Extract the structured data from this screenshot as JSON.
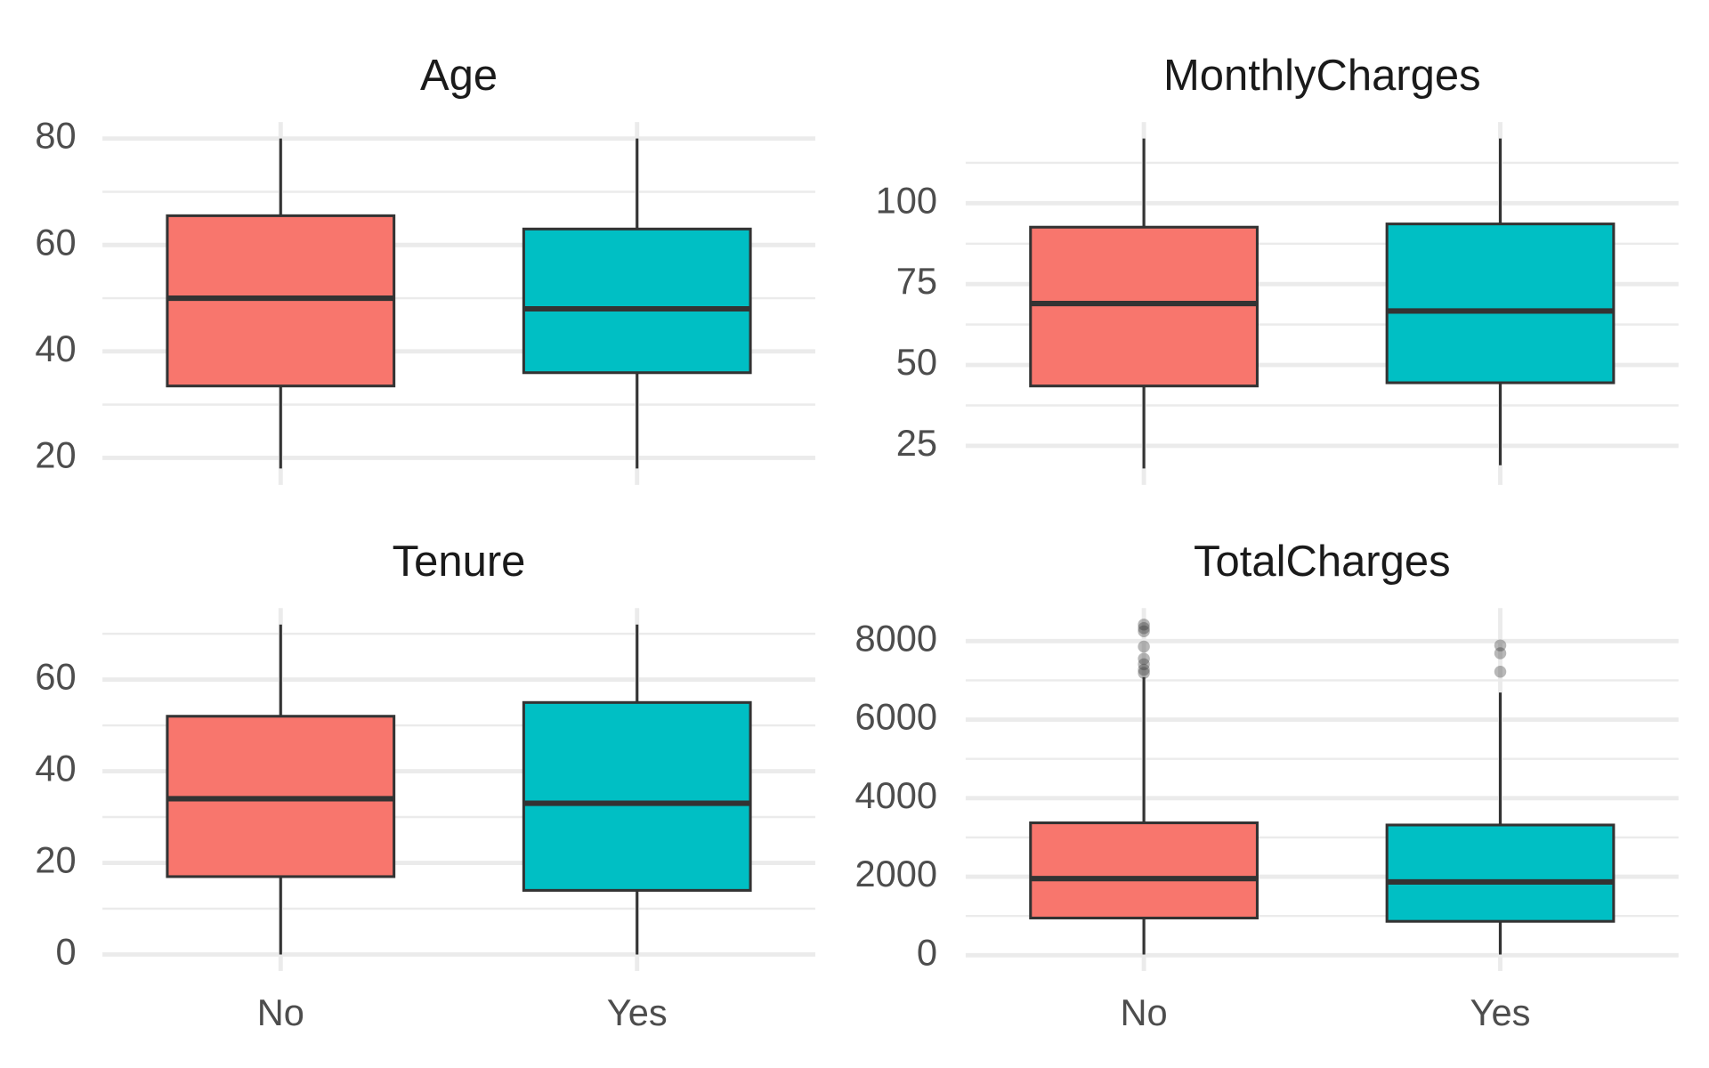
{
  "chart_data": [
    {
      "type": "box",
      "title": "Age",
      "categories": [
        null,
        null
      ],
      "colors": [
        "#F8766D",
        "#00BFC4"
      ],
      "boxes": [
        {
          "whisker_low": 18,
          "q1": 33.5,
          "median": 50,
          "q3": 65.5,
          "whisker_high": 80,
          "outliers": []
        },
        {
          "whisker_low": 18,
          "q1": 36,
          "median": 48,
          "q3": 63,
          "whisker_high": 80,
          "outliers": []
        }
      ],
      "ylim": [
        14.9,
        83.1
      ],
      "yticks": [
        20,
        40,
        60,
        80
      ],
      "grid": true
    },
    {
      "type": "box",
      "title": "MonthlyCharges",
      "categories": [
        null,
        null
      ],
      "colors": [
        "#F8766D",
        "#00BFC4"
      ],
      "boxes": [
        {
          "whisker_low": 18,
          "q1": 43.5,
          "median": 69,
          "q3": 92.6,
          "whisker_high": 120,
          "outliers": []
        },
        {
          "whisker_low": 19,
          "q1": 44.5,
          "median": 66.7,
          "q3": 93.6,
          "whisker_high": 120,
          "outliers": []
        }
      ],
      "ylim": [
        12.9,
        125.1
      ],
      "yticks": [
        25,
        50,
        75,
        100
      ],
      "grid": true
    },
    {
      "type": "box",
      "title": "Tenure",
      "categories": [
        "No",
        "Yes"
      ],
      "colors": [
        "#F8766D",
        "#00BFC4"
      ],
      "boxes": [
        {
          "whisker_low": 0,
          "q1": 17,
          "median": 34,
          "q3": 52,
          "whisker_high": 72,
          "outliers": []
        },
        {
          "whisker_low": 0,
          "q1": 14,
          "median": 33,
          "q3": 55,
          "whisker_high": 72,
          "outliers": []
        }
      ],
      "ylim": [
        -3.6,
        75.6
      ],
      "yticks": [
        0,
        20,
        40,
        60
      ],
      "grid": true
    },
    {
      "type": "box",
      "title": "TotalCharges",
      "categories": [
        "No",
        "Yes"
      ],
      "colors": [
        "#F8766D",
        "#00BFC4"
      ],
      "boxes": [
        {
          "whisker_low": 19,
          "q1": 948,
          "median": 1951,
          "q3": 3372,
          "whisker_high": 7080,
          "outliers": [
            7190,
            7270,
            7410,
            7550,
            7860,
            8250,
            8330,
            8420
          ]
        },
        {
          "whisker_low": 19,
          "q1": 864,
          "median": 1867,
          "q3": 3317,
          "whisker_high": 6690,
          "outliers": [
            7220,
            7690,
            7890
          ]
        }
      ],
      "ylim": [
        -401,
        8840
      ],
      "yticks": [
        0,
        2000,
        4000,
        6000,
        8000
      ],
      "grid": true
    }
  ]
}
